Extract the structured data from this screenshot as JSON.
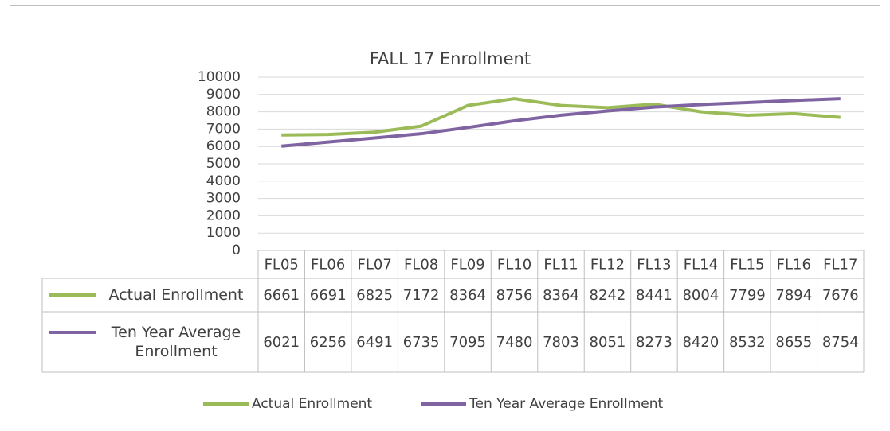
{
  "chart_data": {
    "type": "line",
    "title": "FALL 17 Enrollment",
    "categories": [
      "FL05",
      "FL06",
      "FL07",
      "FL08",
      "FL09",
      "FL10",
      "FL11",
      "FL12",
      "FL13",
      "FL14",
      "FL15",
      "FL16",
      "FL17"
    ],
    "series": [
      {
        "name": "Actual Enrollment",
        "color": "#9bbb59",
        "values": [
          6661,
          6691,
          6825,
          7172,
          8364,
          8756,
          8364,
          8242,
          8441,
          8004,
          7799,
          7894,
          7676
        ]
      },
      {
        "name": "Ten Year Average Enrollment",
        "color": "#8064a2",
        "values": [
          6021,
          6256,
          6491,
          6735,
          7095,
          7480,
          7803,
          8051,
          8273,
          8420,
          8532,
          8655,
          8754
        ]
      }
    ],
    "ylim": [
      0,
      10000
    ],
    "yticks": [
      0,
      1000,
      2000,
      3000,
      4000,
      5000,
      6000,
      7000,
      8000,
      9000,
      10000
    ],
    "grid": true,
    "data_table": true,
    "legend": "bottom"
  }
}
